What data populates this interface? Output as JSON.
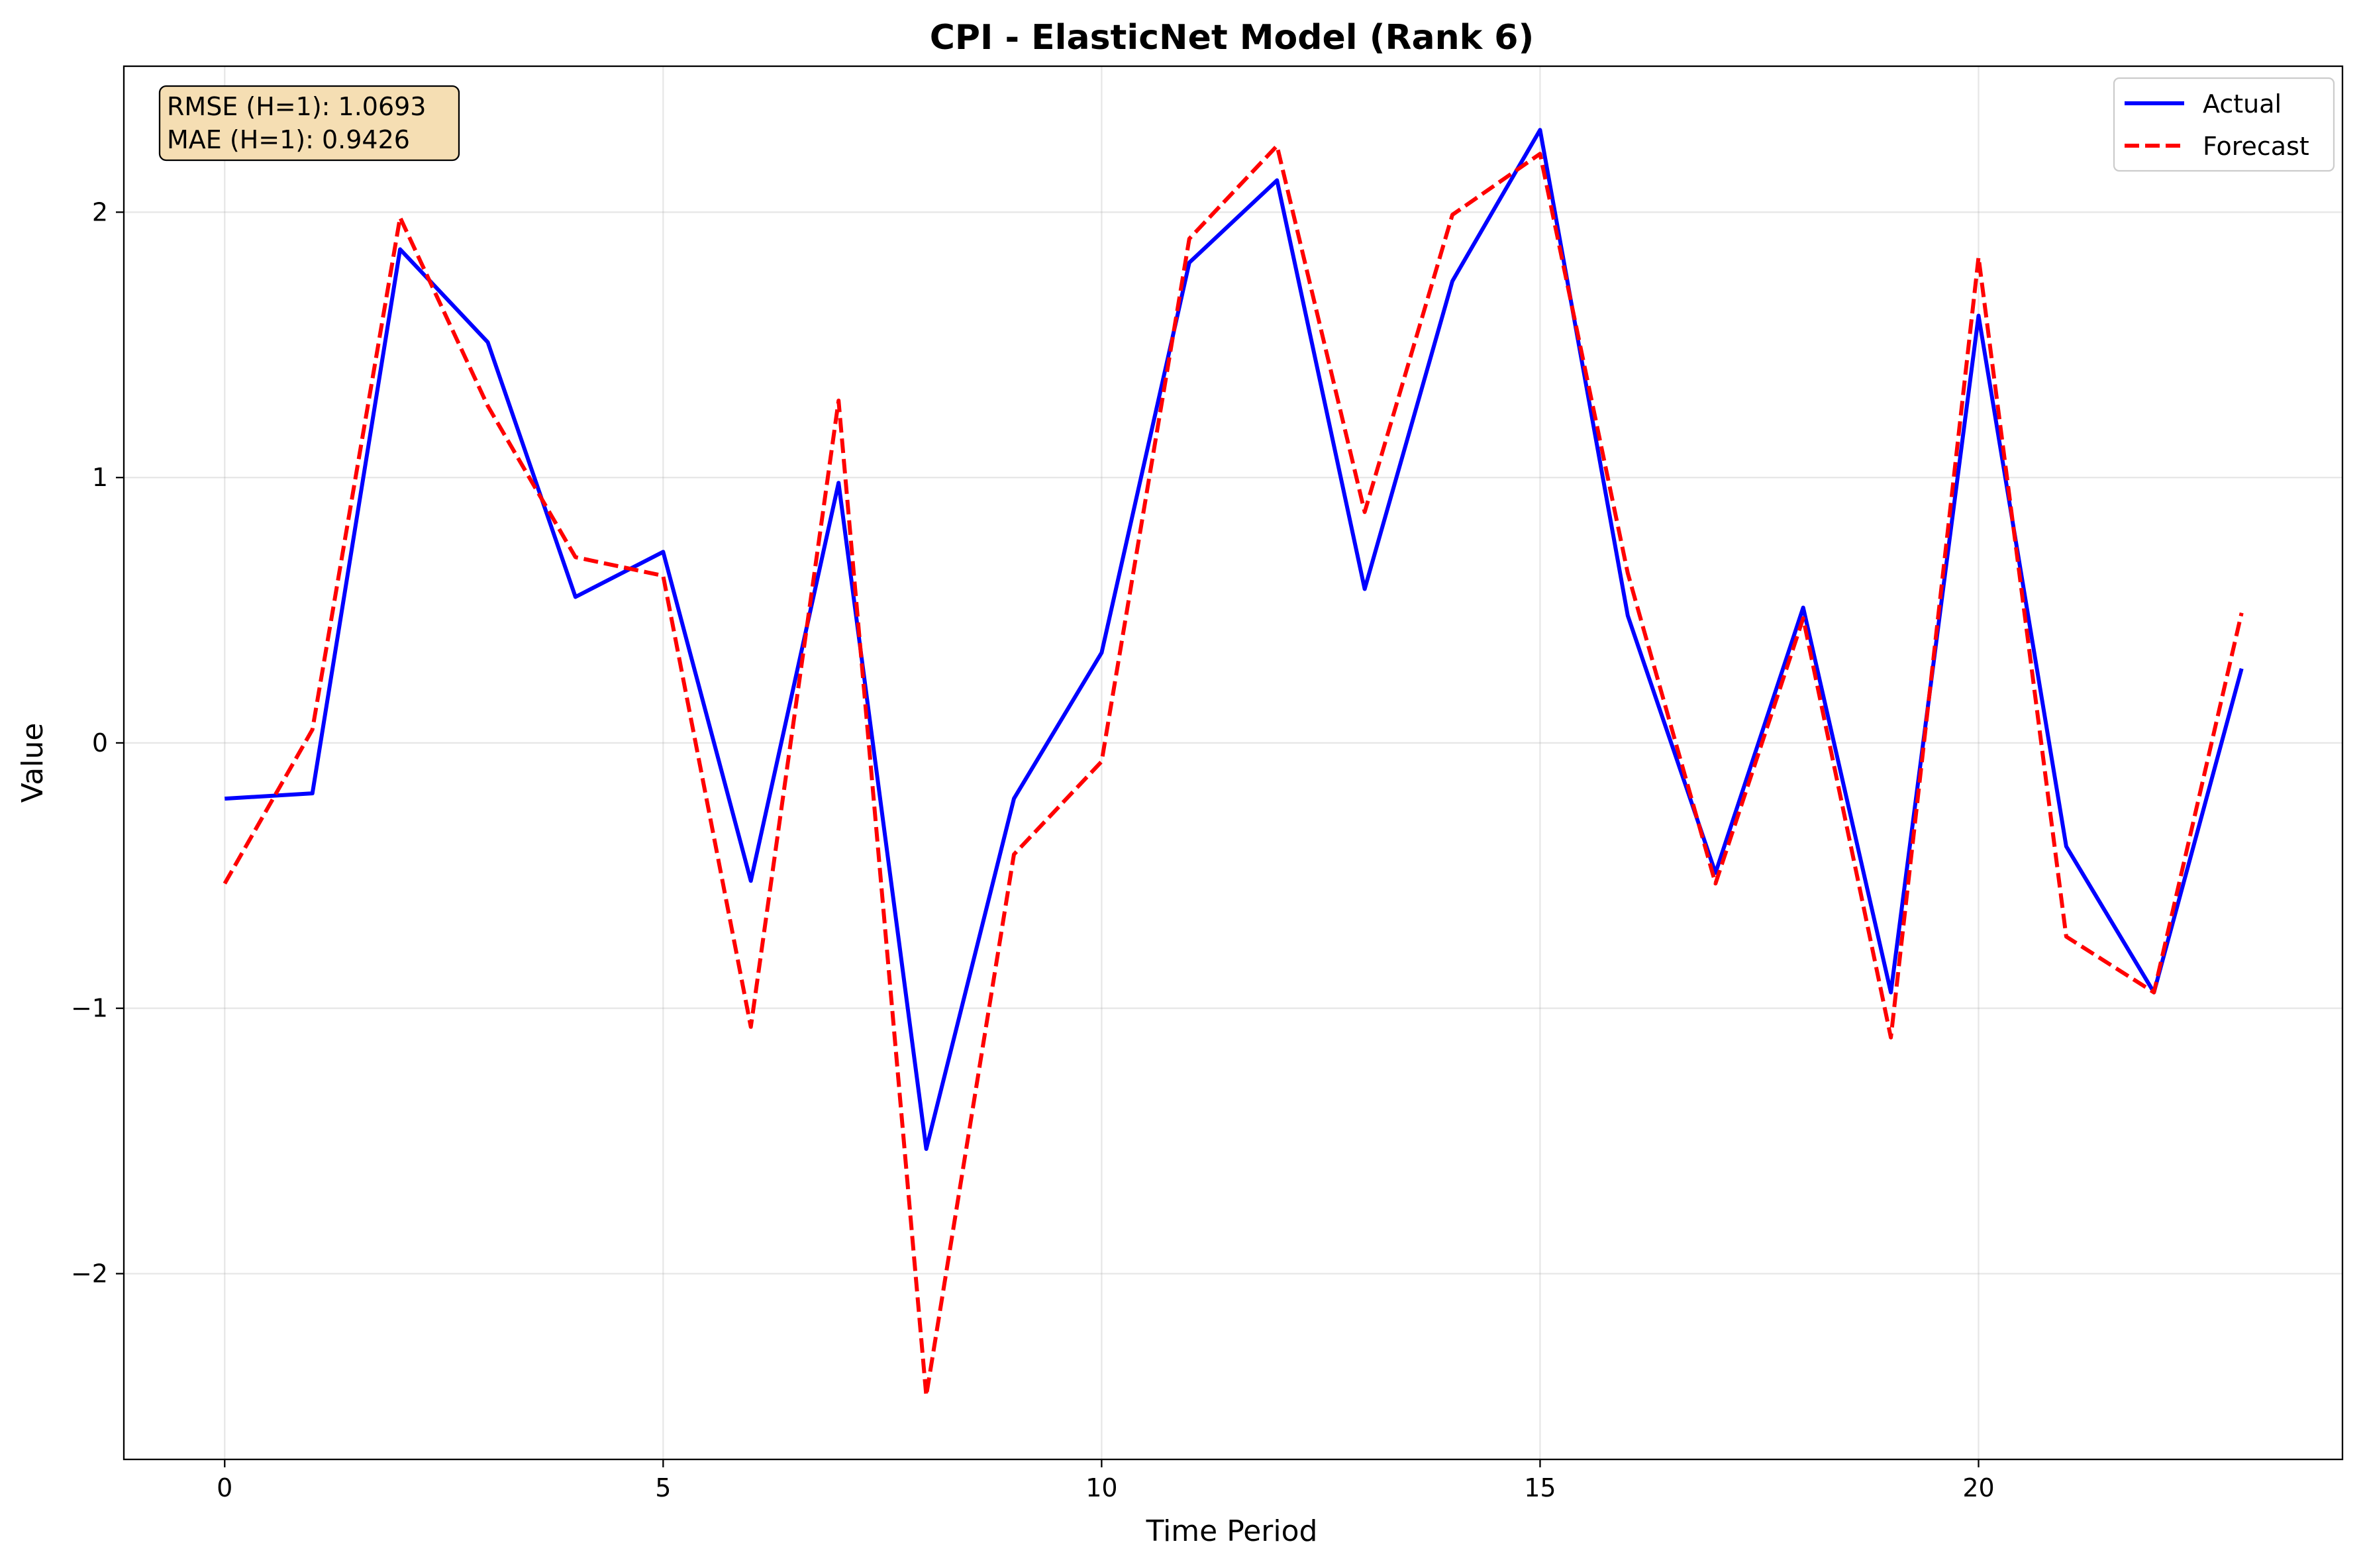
{
  "chart_data": {
    "type": "line",
    "title": "CPI - ElasticNet Model (Rank 6)",
    "xlabel": "Time Period",
    "ylabel": "Value",
    "xlim": [
      -1.15,
      24.15
    ],
    "ylim": [
      -2.7,
      2.55
    ],
    "grid": true,
    "legend_position": "top-right",
    "x_ticks": [
      0,
      5,
      10,
      15,
      20
    ],
    "x_tick_labels": [
      "0",
      "5",
      "10",
      "15",
      "20"
    ],
    "y_ticks": [
      -2,
      -1,
      0,
      1,
      2
    ],
    "y_tick_labels": [
      "−2",
      "−1",
      "0",
      "1",
      "2"
    ],
    "x": [
      0,
      1,
      2,
      3,
      4,
      5,
      6,
      7,
      8,
      9,
      10,
      11,
      12,
      13,
      14,
      15,
      16,
      17,
      18,
      19,
      20,
      21,
      22,
      23
    ],
    "series": [
      {
        "name": "Actual",
        "color": "#0000ff",
        "style": "solid",
        "values": [
          -0.21,
          -0.19,
          1.86,
          1.51,
          0.55,
          0.72,
          -0.52,
          0.98,
          -1.53,
          -0.21,
          0.34,
          1.81,
          2.12,
          0.58,
          1.74,
          2.31,
          0.48,
          -0.49,
          0.51,
          -0.94,
          1.61,
          -0.39,
          -0.94,
          0.28
        ]
      },
      {
        "name": "Forecast",
        "color": "#ff0000",
        "style": "dashed",
        "values": [
          -0.53,
          0.05,
          1.98,
          1.27,
          0.7,
          0.63,
          -1.07,
          1.29,
          -2.46,
          -0.42,
          -0.07,
          1.9,
          2.25,
          0.87,
          1.99,
          2.22,
          0.64,
          -0.53,
          0.47,
          -1.11,
          1.83,
          -0.73,
          -0.94,
          0.49
        ]
      }
    ],
    "annotations": {
      "rmse": "RMSE (H=1): 1.0693",
      "mae": "MAE (H=1): 0.9426"
    }
  }
}
